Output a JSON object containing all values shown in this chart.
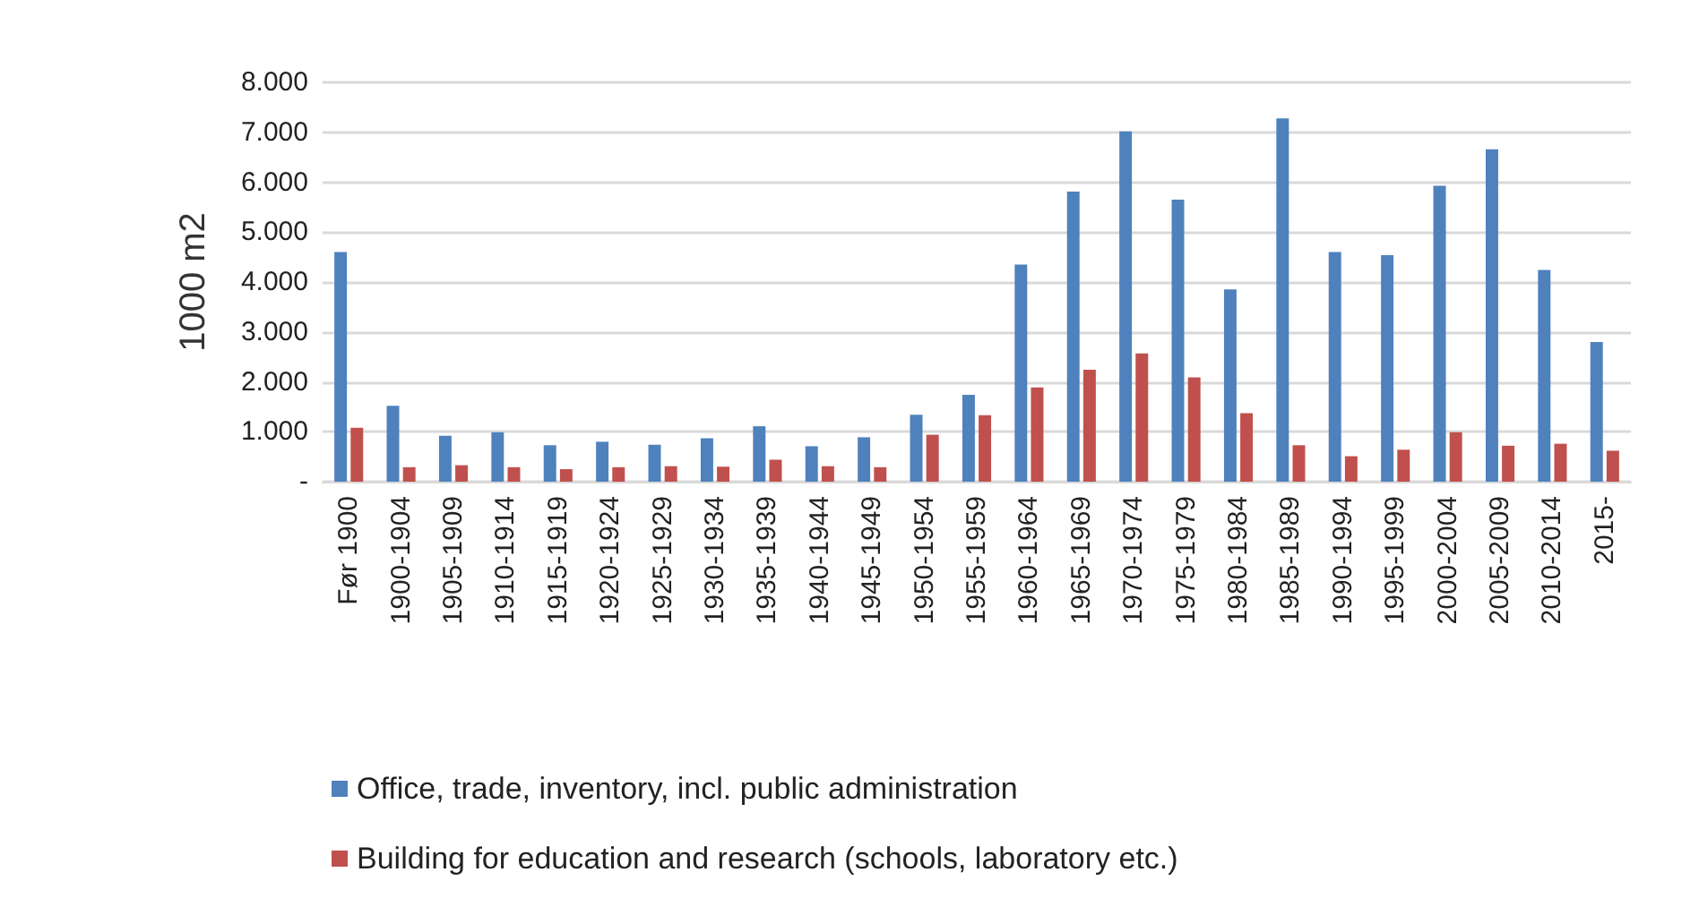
{
  "chart_data": {
    "type": "bar",
    "ylabel": "1000 m2",
    "categories": [
      "Før 1900",
      "1900-1904",
      "1905-1909",
      "1910-1914",
      "1915-1919",
      "1920-1924",
      "1925-1929",
      "1930-1934",
      "1935-1939",
      "1940-1944",
      "1945-1949",
      "1950-1954",
      "1955-1959",
      "1960-1964",
      "1965-1969",
      "1970-1974",
      "1975-1979",
      "1980-1984",
      "1985-1989",
      "1990-1994",
      "1995-1999",
      "2000-2004",
      "2005-2009",
      "2010-2014",
      "2015-"
    ],
    "series": [
      {
        "name": "Office, trade, inventory, incl. public administration",
        "color": "#4f81bd",
        "values": [
          4600,
          1520,
          920,
          990,
          730,
          800,
          740,
          870,
          1110,
          710,
          890,
          1340,
          1740,
          4350,
          5810,
          7020,
          5650,
          3850,
          7280,
          4600,
          4540,
          5930,
          6660,
          4240,
          2800
        ]
      },
      {
        "name": "Building for education and research (schools, laboratory etc.)",
        "color": "#c0504d",
        "values": [
          1080,
          290,
          330,
          290,
          250,
          290,
          310,
          300,
          440,
          310,
          290,
          940,
          1330,
          1890,
          2240,
          2570,
          2090,
          1370,
          730,
          510,
          640,
          990,
          720,
          760,
          620
        ]
      }
    ],
    "ylim": [
      0,
      8000
    ],
    "yticks": [
      {
        "value": 0,
        "label": "-"
      },
      {
        "value": 1000,
        "label": "1.000"
      },
      {
        "value": 2000,
        "label": "2.000"
      },
      {
        "value": 3000,
        "label": "3.000"
      },
      {
        "value": 4000,
        "label": "4.000"
      },
      {
        "value": 5000,
        "label": "5.000"
      },
      {
        "value": 6000,
        "label": "6.000"
      },
      {
        "value": 7000,
        "label": "7.000"
      },
      {
        "value": 8000,
        "label": "8.000"
      }
    ],
    "grid": "y",
    "legend": "bottom"
  }
}
